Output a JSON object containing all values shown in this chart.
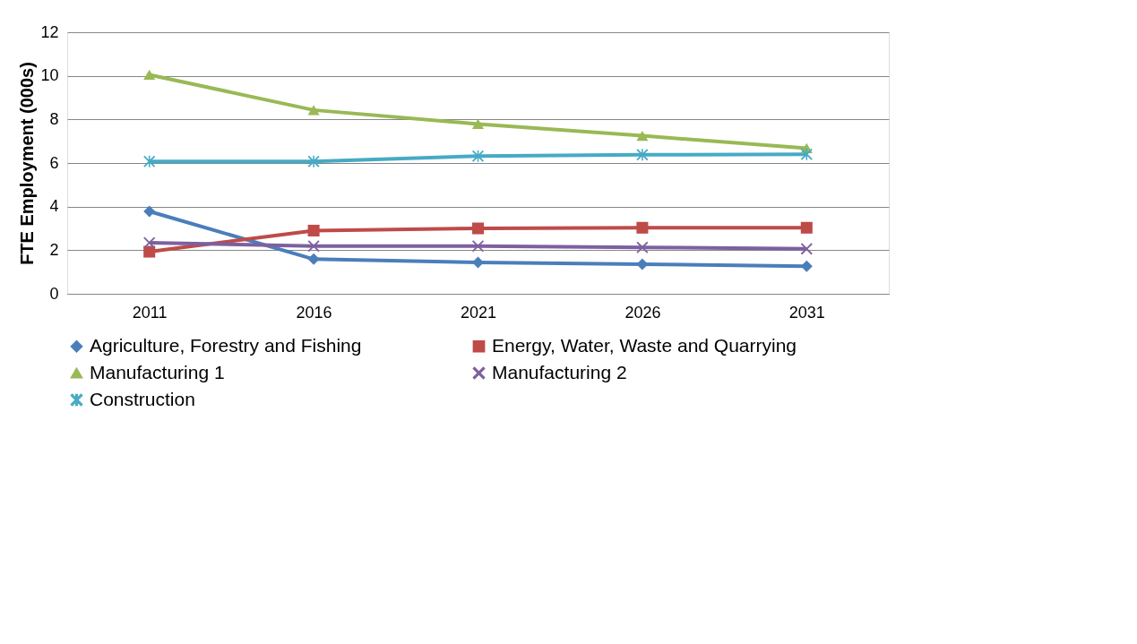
{
  "chart_data": {
    "type": "line",
    "ylabel": "FTE Employment (000s)",
    "categories": [
      "2011",
      "2016",
      "2021",
      "2026",
      "2031"
    ],
    "series": [
      {
        "name": "Agriculture, Forestry and Fishing",
        "color": "#4a7ebb",
        "marker": "diamond",
        "values": [
          3.78,
          1.59,
          1.44,
          1.36,
          1.26
        ]
      },
      {
        "name": "Energy, Water, Waste and Quarrying",
        "color": "#be4b48",
        "marker": "square",
        "values": [
          1.93,
          2.9,
          3.0,
          3.03,
          3.03
        ]
      },
      {
        "name": "Manufacturing 1",
        "color": "#98b954",
        "marker": "triangle",
        "values": [
          10.05,
          8.43,
          7.79,
          7.25,
          6.68
        ]
      },
      {
        "name": "Manufacturing 2",
        "color": "#7d60a0",
        "marker": "cross",
        "values": [
          2.34,
          2.19,
          2.19,
          2.13,
          2.06
        ]
      },
      {
        "name": "Construction",
        "color": "#46aac5",
        "marker": "star",
        "values": [
          6.07,
          6.07,
          6.32,
          6.38,
          6.4
        ]
      }
    ],
    "ylim": [
      0,
      12
    ],
    "yticks": [
      0,
      2,
      4,
      6,
      8,
      10,
      12
    ],
    "grid": "y",
    "legend": "bottom",
    "line_style": "solid"
  }
}
